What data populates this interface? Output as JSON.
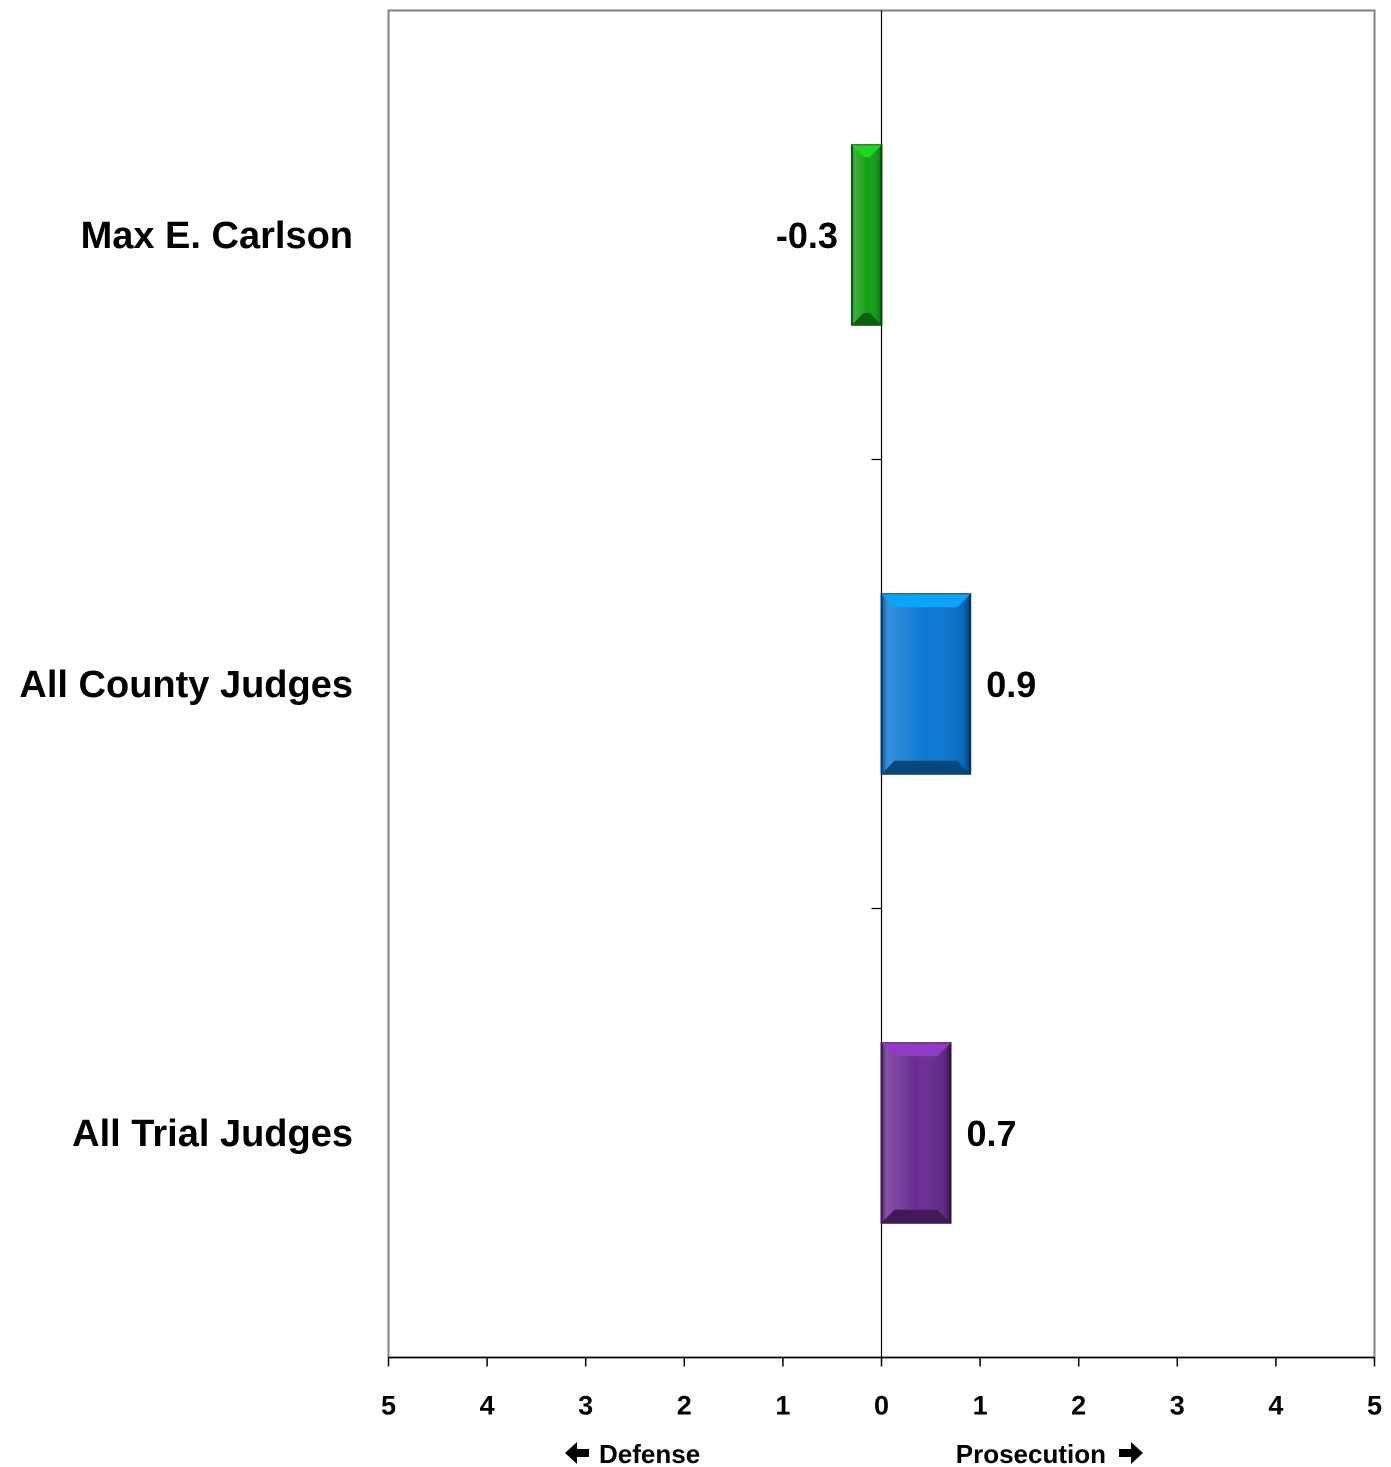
{
  "chart_data": {
    "type": "bar",
    "orientation": "horizontal",
    "categories": [
      "Max E. Carlson",
      "All County Judges",
      "All Trial Judges"
    ],
    "values": [
      -0.3,
      0.9,
      0.7
    ],
    "data_labels": [
      "-0.3",
      "0.9",
      "0.7"
    ],
    "colors": [
      "#16a016",
      "#0a78d2",
      "#6a2c92"
    ],
    "xlim": [
      -5,
      5
    ],
    "xticks": [
      -5,
      -4,
      -3,
      -2,
      -1,
      0,
      1,
      2,
      3,
      4,
      5
    ],
    "xtick_labels": [
      "5",
      "4",
      "3",
      "2",
      "1",
      "0",
      "1",
      "2",
      "3",
      "4",
      "5"
    ],
    "direction_labels": {
      "left": "Defense",
      "right": "Prosecution",
      "left_arrow_icon": "arrow-left-icon",
      "right_arrow_icon": "arrow-right-icon"
    },
    "grid": false,
    "legend": "none",
    "title": "",
    "xlabel": "",
    "ylabel": ""
  }
}
